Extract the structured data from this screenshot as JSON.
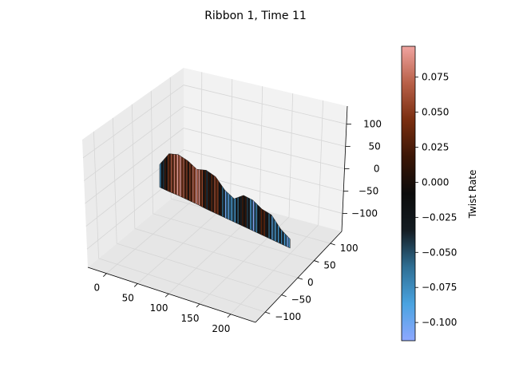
{
  "chart_data": {
    "type": "surface3d",
    "title": "Ribbon 1, Time 11",
    "xlabel": "",
    "ylabel": "",
    "zlabel": "",
    "x_ticks": [
      0,
      50,
      100,
      150,
      200
    ],
    "y_ticks": [
      -100,
      -50,
      0,
      50,
      100
    ],
    "z_ticks": [
      -100,
      -50,
      0,
      50,
      100
    ],
    "colorbar": {
      "label": "Twist Rate",
      "range": [
        -0.113,
        0.097
      ],
      "ticks": [
        "0.075",
        "0.050",
        "0.025",
        "0.000",
        "−0.025",
        "−0.050",
        "−0.075",
        "−0.100"
      ],
      "tick_values": [
        0.075,
        0.05,
        0.025,
        0.0,
        -0.025,
        -0.05,
        -0.075,
        -0.1
      ],
      "colormap_stops": [
        "#8ea8ff",
        "#4aa3e0",
        "#2f6f94",
        "#141c22",
        "#0c0c0c",
        "#3b1606",
        "#7a2e10",
        "#b86048",
        "#f0a4a0"
      ]
    },
    "ribbon": {
      "x": [
        10,
        25,
        40,
        55,
        70,
        85,
        100,
        115,
        130,
        145,
        160,
        175,
        190,
        205,
        220
      ],
      "y": [
        0,
        0,
        0,
        0,
        0,
        0,
        0,
        0,
        0,
        0,
        0,
        0,
        0,
        0,
        0
      ],
      "z_top": [
        28,
        60,
        65,
        58,
        45,
        50,
        42,
        18,
        5,
        20,
        16,
        2,
        -4,
        -30,
        -46
      ],
      "z_bottom": [
        -25,
        -28,
        -30,
        -33,
        -36,
        -40,
        -43,
        -46,
        -49,
        -52,
        -55,
        -58,
        -61,
        -64,
        -67
      ],
      "twist_rate": [
        -0.05,
        0.04,
        0.08,
        0.02,
        0.09,
        -0.02,
        0.05,
        -0.08,
        -0.06,
        0.01,
        -0.09,
        0.03,
        -0.07,
        -0.05,
        -0.1
      ]
    }
  }
}
